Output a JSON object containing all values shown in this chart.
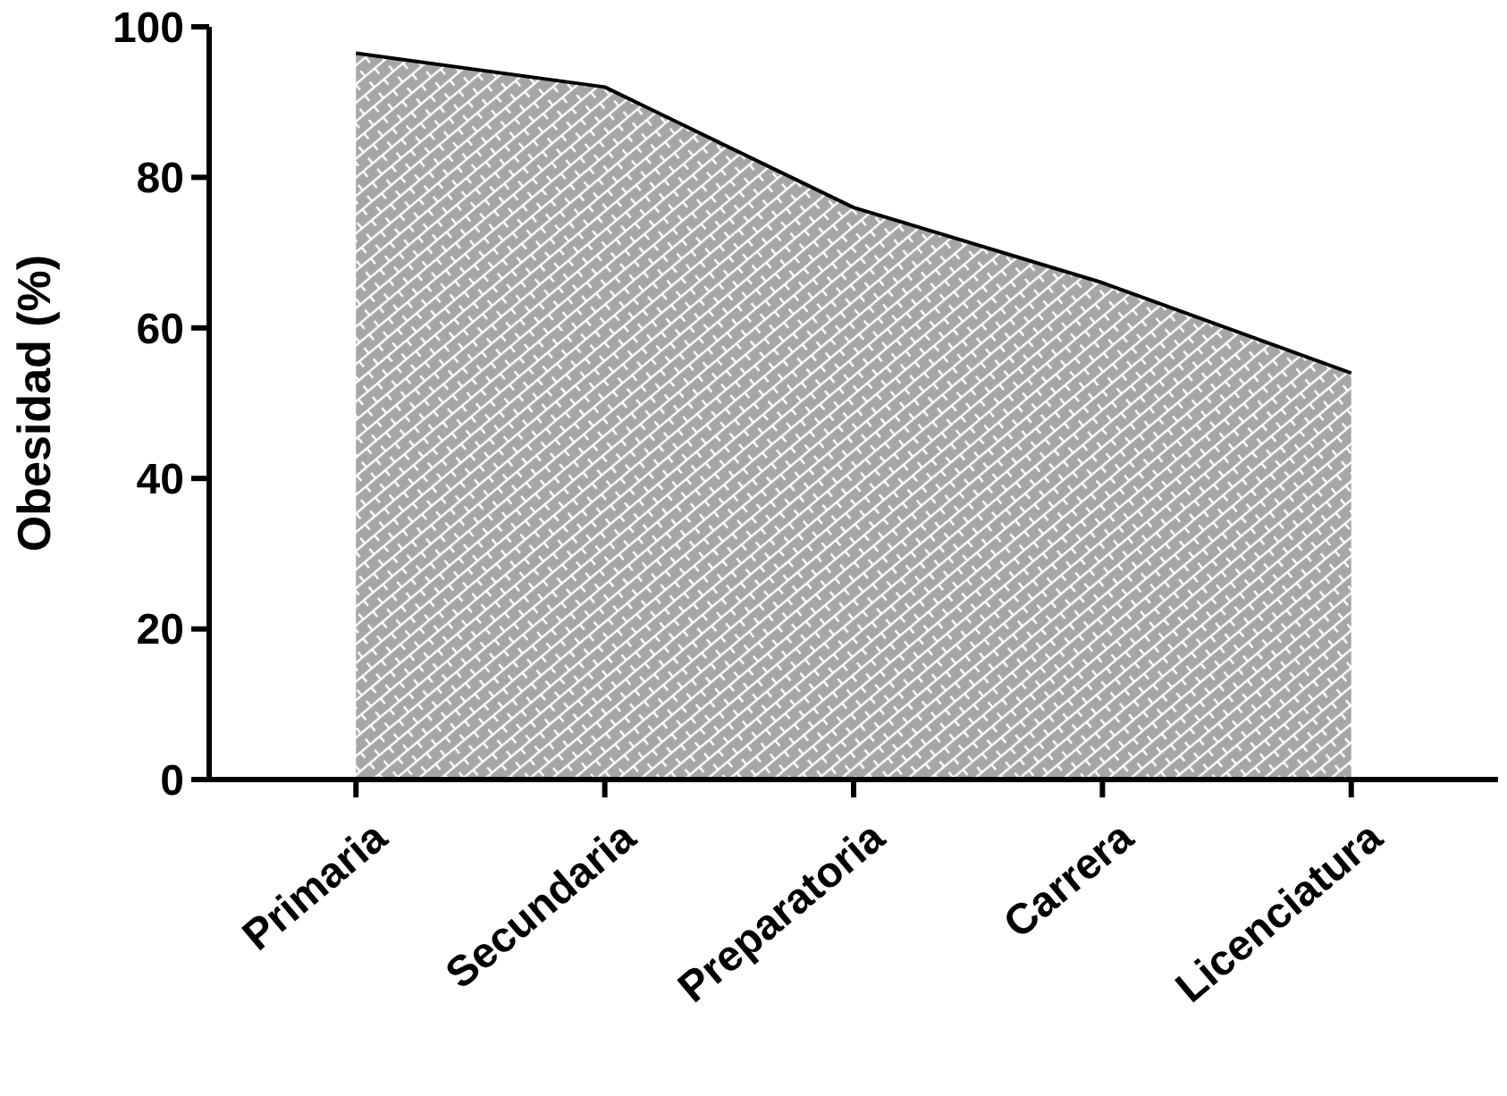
{
  "chart_data": {
    "type": "area",
    "ylabel": "Obesidad (%)",
    "categories": [
      "Primaria",
      "Secundaria",
      "Preparatoria",
      "Carrera",
      "Licenciatura"
    ],
    "series": [
      {
        "color": "#a6a6a6",
        "values": [
          96.5,
          92,
          76,
          66,
          54
        ]
      }
    ],
    "ylim": [
      0,
      100
    ],
    "yticks": [
      0,
      20,
      40,
      60,
      80,
      100
    ]
  }
}
